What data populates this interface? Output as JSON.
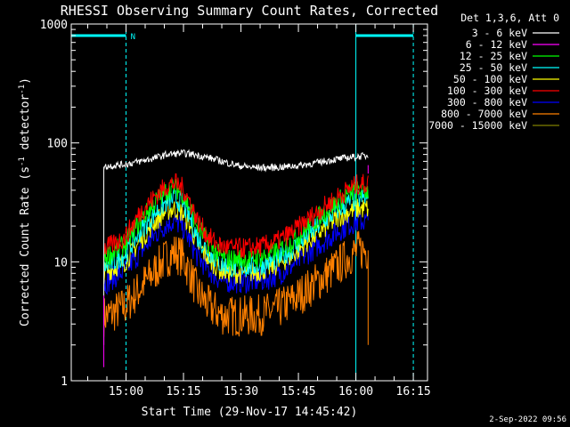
{
  "chart_data": {
    "type": "line",
    "title": "RHESSI Observing Summary Count Rates, Corrected",
    "xlabel": "Start Time (29-Nov-17 14:45:42)",
    "ylabel_prefix": "Corrected Count Rate (s",
    "ylabel_sup1": "-1",
    "ylabel_mid": " detector",
    "ylabel_sup2": "-1",
    "ylabel_suffix": ")",
    "x_units": "minutes since 14:45:42 UT, 29-Nov-2017",
    "xlim": [
      0,
      93
    ],
    "ylim": [
      1,
      1000
    ],
    "yscale": "log",
    "x_ticks": [
      {
        "value": 14.3,
        "label": "15:00"
      },
      {
        "value": 29.3,
        "label": "15:15"
      },
      {
        "value": 44.3,
        "label": "15:30"
      },
      {
        "value": 59.3,
        "label": "15:45"
      },
      {
        "value": 74.3,
        "label": "16:00"
      },
      {
        "value": 89.3,
        "label": "16:15"
      }
    ],
    "y_ticks": [
      {
        "value": 1,
        "label": "1"
      },
      {
        "value": 10,
        "label": "10"
      },
      {
        "value": 100,
        "label": "100"
      },
      {
        "value": 1000,
        "label": "1000"
      }
    ],
    "legend_header": "Det 1,3,6, Att 0",
    "legend_placement": "right",
    "series": [
      {
        "name": "3 - 6 keV",
        "color": "#ffffff",
        "x": [
          8.5,
          10,
          14,
          18,
          22,
          25,
          29,
          32,
          36,
          40,
          44,
          48,
          52,
          56,
          60,
          64,
          68,
          72,
          75,
          77.5
        ],
        "values": [
          63,
          64,
          66,
          70,
          75,
          80,
          82,
          80,
          75,
          69,
          64,
          62,
          62,
          63,
          65,
          68,
          72,
          75,
          77,
          78
        ]
      },
      {
        "name": "6 - 12 keV",
        "color": "#ff00ff",
        "x": [
          8.5,
          77.5
        ],
        "values": [
          1.3,
          65
        ]
      },
      {
        "name": "12 - 25 keV",
        "color": "#00ff00",
        "x": [
          8.5,
          10,
          14,
          18,
          22,
          25,
          27,
          29,
          31,
          33,
          36,
          39,
          42,
          46,
          50,
          54,
          58,
          62,
          66,
          70,
          73,
          75,
          77.5
        ],
        "values": [
          11,
          11.5,
          14,
          22,
          32,
          40,
          42,
          38,
          28,
          20,
          14,
          11,
          10.5,
          10.5,
          11,
          12.5,
          15,
          20,
          26,
          33,
          38,
          40,
          40
        ]
      },
      {
        "name": "25 - 50 keV",
        "color": "#00ffff",
        "x": [
          8.5,
          10,
          14,
          18,
          22,
          25,
          27,
          29,
          31,
          33,
          36,
          39,
          42,
          46,
          50,
          54,
          58,
          62,
          66,
          70,
          73,
          75,
          77.5
        ],
        "values": [
          9,
          9.5,
          11.5,
          18,
          26,
          32,
          34,
          31,
          23,
          16,
          12,
          9.5,
          9,
          9,
          9.5,
          10.5,
          13,
          17,
          22,
          28,
          32,
          34,
          34
        ]
      },
      {
        "name": "50 - 100 keV",
        "color": "#ffff00",
        "x": [
          8.5,
          10,
          14,
          18,
          22,
          25,
          27,
          29,
          31,
          33,
          36,
          39,
          42,
          46,
          50,
          54,
          58,
          62,
          66,
          70,
          73,
          75,
          77.5
        ],
        "values": [
          8,
          8.5,
          10,
          15,
          22,
          27,
          28,
          26,
          20,
          14,
          10.5,
          8.5,
          8,
          8,
          8.5,
          9.5,
          11.5,
          15,
          19,
          24,
          27,
          28,
          28
        ]
      },
      {
        "name": "100 - 300 keV",
        "color": "#ff0000",
        "x": [
          8.5,
          10,
          14,
          18,
          22,
          25,
          27,
          29,
          31,
          33,
          36,
          39,
          42,
          46,
          50,
          54,
          58,
          62,
          66,
          70,
          73,
          75,
          77.5
        ],
        "values": [
          13,
          13.5,
          16,
          26,
          36,
          44,
          46,
          42,
          32,
          22,
          16,
          13.5,
          13,
          13,
          13.5,
          15,
          18,
          23,
          29,
          36,
          42,
          45,
          45
        ]
      },
      {
        "name": "300 - 800 keV",
        "color": "#0000ff",
        "x": [
          8.5,
          10,
          14,
          18,
          22,
          25,
          27,
          29,
          31,
          33,
          36,
          39,
          42,
          46,
          50,
          54,
          58,
          62,
          66,
          70,
          73,
          75,
          77.5
        ],
        "values": [
          6.5,
          7,
          8.5,
          12,
          17,
          21,
          22,
          20,
          15,
          11,
          8.5,
          7,
          6.8,
          6.8,
          7,
          7.8,
          9.5,
          12,
          15,
          18.5,
          21,
          22,
          22
        ]
      },
      {
        "name": "800 - 7000 keV",
        "color": "#ff8000",
        "x": [
          8.5,
          10,
          14,
          18,
          22,
          25,
          27,
          29,
          31,
          33,
          36,
          39,
          42,
          46,
          50,
          54,
          58,
          62,
          66,
          70,
          73,
          75,
          77.5
        ],
        "values": [
          3.5,
          3.6,
          4.2,
          6,
          8.5,
          11,
          12,
          11,
          8,
          5.5,
          4.2,
          3.6,
          3.5,
          3.5,
          3.6,
          4,
          4.8,
          6,
          7.5,
          9.5,
          11.5,
          12.5,
          12.5
        ]
      },
      {
        "name": "7000 - 15000 keV",
        "color": "#808000",
        "x": [],
        "values": []
      }
    ],
    "annotations": {
      "flag_segments_y": 800,
      "flag_segments_x": [
        [
          0,
          14.3
        ],
        [
          74.3,
          89.3
        ]
      ],
      "solid_vlines_x": [
        0,
        74.3
      ],
      "dashed_vlines_x": [
        14.3,
        89.3
      ],
      "flag_label": "N",
      "flag_label_x": 15.5,
      "color": "#00ffff"
    }
  },
  "footer": {
    "date_stamp": "2-Sep-2022 09:56"
  }
}
